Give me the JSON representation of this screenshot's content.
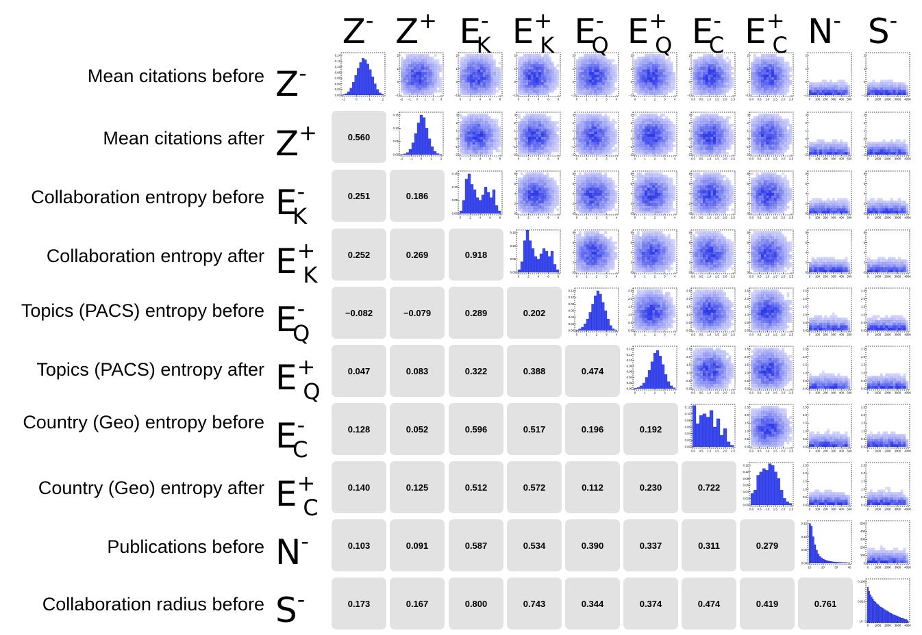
{
  "chart_data": {
    "type": "heatmap",
    "title": "",
    "variables": [
      {
        "symbol": "Z",
        "sup": "-",
        "sub": "",
        "name": "Mean citations before"
      },
      {
        "symbol": "Z",
        "sup": "+",
        "sub": "",
        "name": "Mean citations after"
      },
      {
        "symbol": "E",
        "sup": "-",
        "sub": "K",
        "name": "Collaboration entropy before"
      },
      {
        "symbol": "E",
        "sup": "+",
        "sub": "K",
        "name": "Collaboration entropy after"
      },
      {
        "symbol": "E",
        "sup": "-",
        "sub": "Q",
        "name": "Topics (PACS) entropy before"
      },
      {
        "symbol": "E",
        "sup": "+",
        "sub": "Q",
        "name": "Topics (PACS) entropy after"
      },
      {
        "symbol": "E",
        "sup": "-",
        "sub": "C",
        "name": "Country (Geo) entropy before"
      },
      {
        "symbol": "E",
        "sup": "+",
        "sub": "C",
        "name": "Country (Geo) entropy after"
      },
      {
        "symbol": "N",
        "sup": "-",
        "sub": "",
        "name": "Publications before"
      },
      {
        "symbol": "S",
        "sup": "-",
        "sub": "",
        "name": "Collaboration radius before"
      }
    ],
    "correlations": [
      {
        "row": 1,
        "col": 0,
        "value": "0.560"
      },
      {
        "row": 2,
        "col": 0,
        "value": "0.251"
      },
      {
        "row": 2,
        "col": 1,
        "value": "0.186"
      },
      {
        "row": 3,
        "col": 0,
        "value": "0.252"
      },
      {
        "row": 3,
        "col": 1,
        "value": "0.269"
      },
      {
        "row": 3,
        "col": 2,
        "value": "0.918"
      },
      {
        "row": 4,
        "col": 0,
        "value": "−0.082"
      },
      {
        "row": 4,
        "col": 1,
        "value": "−0.079"
      },
      {
        "row": 4,
        "col": 2,
        "value": "0.289"
      },
      {
        "row": 4,
        "col": 3,
        "value": "0.202"
      },
      {
        "row": 5,
        "col": 0,
        "value": "0.047"
      },
      {
        "row": 5,
        "col": 1,
        "value": "0.083"
      },
      {
        "row": 5,
        "col": 2,
        "value": "0.322"
      },
      {
        "row": 5,
        "col": 3,
        "value": "0.388"
      },
      {
        "row": 5,
        "col": 4,
        "value": "0.474"
      },
      {
        "row": 6,
        "col": 0,
        "value": "0.128"
      },
      {
        "row": 6,
        "col": 1,
        "value": "0.052"
      },
      {
        "row": 6,
        "col": 2,
        "value": "0.596"
      },
      {
        "row": 6,
        "col": 3,
        "value": "0.517"
      },
      {
        "row": 6,
        "col": 4,
        "value": "0.196"
      },
      {
        "row": 6,
        "col": 5,
        "value": "0.192"
      },
      {
        "row": 7,
        "col": 0,
        "value": "0.140"
      },
      {
        "row": 7,
        "col": 1,
        "value": "0.125"
      },
      {
        "row": 7,
        "col": 2,
        "value": "0.512"
      },
      {
        "row": 7,
        "col": 3,
        "value": "0.572"
      },
      {
        "row": 7,
        "col": 4,
        "value": "0.112"
      },
      {
        "row": 7,
        "col": 5,
        "value": "0.230"
      },
      {
        "row": 7,
        "col": 6,
        "value": "0.722"
      },
      {
        "row": 8,
        "col": 0,
        "value": "0.103"
      },
      {
        "row": 8,
        "col": 1,
        "value": "0.091"
      },
      {
        "row": 8,
        "col": 2,
        "value": "0.587"
      },
      {
        "row": 8,
        "col": 3,
        "value": "0.534"
      },
      {
        "row": 8,
        "col": 4,
        "value": "0.390"
      },
      {
        "row": 8,
        "col": 5,
        "value": "0.337"
      },
      {
        "row": 8,
        "col": 6,
        "value": "0.311"
      },
      {
        "row": 8,
        "col": 7,
        "value": "0.279"
      },
      {
        "row": 9,
        "col": 0,
        "value": "0.173"
      },
      {
        "row": 9,
        "col": 1,
        "value": "0.167"
      },
      {
        "row": 9,
        "col": 2,
        "value": "0.800"
      },
      {
        "row": 9,
        "col": 3,
        "value": "0.743"
      },
      {
        "row": 9,
        "col": 4,
        "value": "0.344"
      },
      {
        "row": 9,
        "col": 5,
        "value": "0.374"
      },
      {
        "row": 9,
        "col": 6,
        "value": "0.474"
      },
      {
        "row": 9,
        "col": 7,
        "value": "0.419"
      },
      {
        "row": 9,
        "col": 8,
        "value": "0.761"
      }
    ],
    "var_ticks": [
      [
        "−1",
        "0",
        "1",
        "2"
      ],
      [
        "−2",
        "−1",
        "0",
        "1",
        "2",
        "3"
      ],
      [
        "0",
        "2",
        "4",
        "6",
        "8"
      ],
      [
        "0",
        "2",
        "4",
        "6",
        "8"
      ],
      [
        "0",
        "1",
        "2",
        "3",
        "4"
      ],
      [
        "0",
        "1",
        "2",
        "3",
        "4"
      ],
      [
        "0.0",
        "0.5",
        "1.0",
        "1.5",
        "2.0",
        "2.5"
      ],
      [
        "0.0",
        "0.5",
        "1.0",
        "1.5",
        "2.0",
        "2.5"
      ],
      [
        "0",
        "100",
        "200",
        "300",
        "400",
        "500"
      ],
      [
        "0",
        "1000",
        "2000",
        "3000",
        "4000"
      ]
    ],
    "var_yticks": [
      [
        "−1",
        "0",
        "1",
        "2"
      ],
      [
        "−2",
        "−1",
        "0",
        "1",
        "2",
        "3"
      ],
      [
        "0",
        "2",
        "4",
        "6",
        "8"
      ],
      [
        "0",
        "2",
        "4",
        "6",
        "8"
      ],
      [
        "0.0",
        "0.5",
        "1.0",
        "1.5",
        "2.0",
        "2.5"
      ],
      [
        "0.0",
        "0.5",
        "1.0",
        "1.5",
        "2.0",
        "2.5"
      ],
      [
        "0.0",
        "0.5",
        "1.0",
        "1.5",
        "2.0",
        "2.5"
      ],
      [
        "0.0",
        "0.5",
        "1.0",
        "1.5",
        "2.0",
        "2.5"
      ],
      [
        "0",
        "100",
        "200",
        "300",
        "400",
        "500"
      ],
      [
        "0",
        "1000",
        "2000",
        "3000",
        "4000"
      ]
    ],
    "histograms": [
      {
        "var": 0,
        "yticks": [
          "0.00",
          "0.02",
          "0.04",
          "0.06",
          "0.08",
          "0.10",
          "0.12",
          "0.14"
        ],
        "xticks": [
          "−1",
          "0",
          "1",
          "2"
        ],
        "values": [
          0.002,
          0.005,
          0.012,
          0.025,
          0.045,
          0.07,
          0.095,
          0.115,
          0.13,
          0.125,
          0.11,
          0.09,
          0.065,
          0.04,
          0.02,
          0.008,
          0.003
        ]
      },
      {
        "var": 1,
        "yticks": [
          "0.00",
          "0.05",
          "0.10",
          "0.15"
        ],
        "xticks": [
          "−2",
          "−1",
          "0",
          "1",
          "2"
        ],
        "values": [
          0.001,
          0.003,
          0.008,
          0.02,
          0.045,
          0.08,
          0.12,
          0.15,
          0.14,
          0.1,
          0.06,
          0.03,
          0.012,
          0.004,
          0.001
        ]
      },
      {
        "var": 2,
        "yticks": [
          "0.00",
          "0.05",
          "0.10",
          "0.15"
        ],
        "xticks": [
          "0",
          "2",
          "4",
          "6",
          "8"
        ],
        "values": [
          0.01,
          0.05,
          0.13,
          0.15,
          0.11,
          0.09,
          0.06,
          0.05,
          0.07,
          0.1,
          0.08,
          0.06,
          0.09,
          0.03,
          0.01
        ]
      },
      {
        "var": 3,
        "yticks": [
          "0.00",
          "0.05",
          "0.10",
          "0.15"
        ],
        "xticks": [
          "0",
          "2",
          "4",
          "6",
          "8"
        ],
        "values": [
          0.01,
          0.04,
          0.12,
          0.16,
          0.12,
          0.09,
          0.06,
          0.05,
          0.07,
          0.09,
          0.08,
          0.06,
          0.08,
          0.03,
          0.01
        ]
      },
      {
        "var": 4,
        "yticks": [
          "0.00",
          "0.02",
          "0.04",
          "0.06",
          "0.08",
          "0.10",
          "0.12"
        ],
        "xticks": [
          "0",
          "1",
          "2",
          "3",
          "4"
        ],
        "values": [
          0.002,
          0.005,
          0.01,
          0.02,
          0.035,
          0.055,
          0.08,
          0.105,
          0.12,
          0.11,
          0.085,
          0.06,
          0.035,
          0.015,
          0.005,
          0.002
        ]
      },
      {
        "var": 5,
        "yticks": [
          "0.00",
          "0.02",
          "0.04",
          "0.06",
          "0.08",
          "0.10",
          "0.12",
          "0.14"
        ],
        "xticks": [
          "0",
          "1",
          "2",
          "3",
          "4"
        ],
        "values": [
          0.002,
          0.004,
          0.01,
          0.02,
          0.04,
          0.065,
          0.095,
          0.125,
          0.135,
          0.115,
          0.085,
          0.05,
          0.025,
          0.01,
          0.003
        ]
      },
      {
        "var": 6,
        "yticks": [
          "0.00",
          "0.02",
          "0.04",
          "0.06",
          "0.08",
          "0.10",
          "0.12"
        ],
        "xticks": [
          "0.0",
          "0.5",
          "1.0",
          "1.5",
          "2.0",
          "2.5"
        ],
        "values": [
          0.125,
          0.07,
          0.095,
          0.1,
          0.09,
          0.11,
          0.06,
          0.085,
          0.035,
          0.055,
          0.015,
          0.005
        ]
      },
      {
        "var": 7,
        "yticks": [
          "0.00",
          "0.02",
          "0.04",
          "0.06",
          "0.08",
          "0.10",
          "0.12"
        ],
        "xticks": [
          "0.0",
          "0.5",
          "1.0",
          "1.5",
          "2.0",
          "2.5"
        ],
        "values": [
          0.035,
          0.045,
          0.09,
          0.1,
          0.11,
          0.105,
          0.125,
          0.12,
          0.1,
          0.08,
          0.045,
          0.02,
          0.01,
          0.005
        ]
      },
      {
        "var": 8,
        "yticks": [
          "0.00",
          "0.05",
          "0.10",
          "0.15"
        ],
        "xticks": [
          "10",
          "20",
          "30",
          "40"
        ],
        "values": [
          0.15,
          0.14,
          0.1,
          0.07,
          0.05,
          0.035,
          0.025,
          0.02,
          0.015,
          0.012,
          0.01,
          0.008,
          0.007,
          0.006,
          0.005,
          0.004,
          0.004,
          0.003,
          0.003,
          0.002,
          0.002,
          0.002,
          0.001,
          0.001
        ]
      },
      {
        "var": 9,
        "yticks": [
          "10⁻³",
          "0.010",
          "0.100"
        ],
        "xticks": [
          "0",
          "1000",
          "2000",
          "3000",
          "4000"
        ],
        "log": true,
        "values": [
          0.09,
          0.05,
          0.03,
          0.022,
          0.016,
          0.012,
          0.01,
          0.008,
          0.007,
          0.006,
          0.005,
          0.0045,
          0.004,
          0.0035,
          0.003,
          0.0028,
          0.0025,
          0.0022,
          0.002,
          0.0018,
          0.0016,
          0.0015,
          0.0014,
          0.0013,
          0.0012,
          0.0011,
          0.001,
          0.001,
          0.0009,
          0.0008,
          0.0008,
          0.0007
        ]
      }
    ],
    "colors": {
      "hist_fill": "#3b49f0",
      "hist_stroke": "#1b22a8",
      "heat": "#2430e8",
      "cell_bg": "#e2e2e2"
    }
  }
}
